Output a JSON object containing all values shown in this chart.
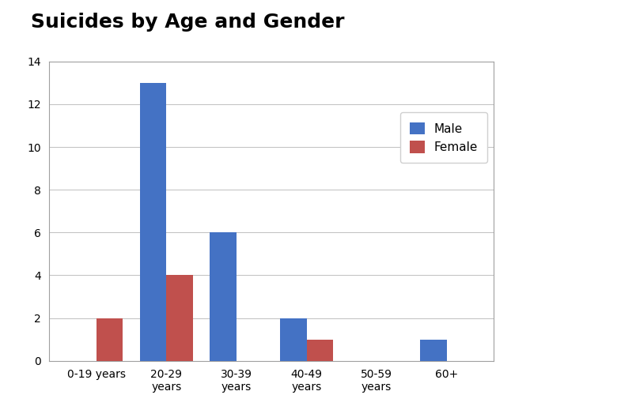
{
  "title": "Suicides by Age and Gender",
  "categories": [
    "0-19 years",
    "20-29\nyears",
    "30-39\nyears",
    "40-49\nyears",
    "50-59\nyears",
    "60+"
  ],
  "male_values": [
    0,
    13,
    6,
    2,
    0,
    1
  ],
  "female_values": [
    2,
    4,
    0,
    1,
    0,
    0
  ],
  "male_color": "#4472c4",
  "female_color": "#c0504d",
  "ylim": [
    0,
    14
  ],
  "yticks": [
    0,
    2,
    4,
    6,
    8,
    10,
    12,
    14
  ],
  "bar_width": 0.38,
  "legend_labels": [
    "Male",
    "Female"
  ],
  "title_fontsize": 18,
  "tick_fontsize": 10,
  "legend_fontsize": 11,
  "background_color": "#ffffff",
  "plot_bg_color": "#ffffff"
}
